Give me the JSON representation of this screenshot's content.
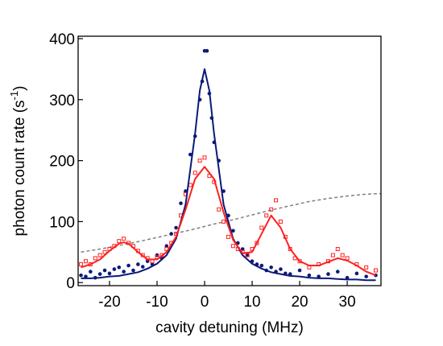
{
  "chart_data": {
    "type": "scatter",
    "xlabel": "cavity detuning (MHz)",
    "ylabel": "photon count rate (s",
    "ylabel_sup": "-1",
    "ylabel_end": ")",
    "xlim": [
      -26.6,
      37.1
    ],
    "ylim": [
      -5,
      404
    ],
    "xticks": [
      -20,
      -10,
      0,
      10,
      20,
      30
    ],
    "yticks": [
      0,
      100,
      200,
      300,
      400
    ],
    "series": [
      {
        "marker": "line",
        "color": "#808080",
        "dash": true,
        "x": [
          -26,
          -22,
          -18,
          -14,
          -10,
          -6,
          -2,
          2,
          6,
          10,
          14,
          18,
          22,
          26,
          30,
          34,
          37
        ],
        "values": [
          50,
          55,
          61,
          67,
          74,
          81,
          88,
          96,
          103,
          111,
          119,
          126,
          133,
          138,
          142,
          145,
          146
        ]
      },
      {
        "marker": "circle",
        "color": "#0a1a78",
        "x": [
          -26,
          -25,
          -24,
          -23,
          -22,
          -21,
          -20,
          -19,
          -18,
          -17,
          -16,
          -15,
          -14,
          -13,
          -12,
          -11,
          -10,
          -9,
          -8,
          -7,
          -6,
          -5,
          -4,
          -3,
          -2,
          -1,
          -0.5,
          0,
          0.5,
          1,
          1.5,
          2,
          3,
          4,
          5,
          6,
          7,
          8,
          9,
          10,
          11,
          12,
          13,
          14,
          15,
          16,
          17,
          18,
          20,
          22,
          24,
          26,
          28,
          30,
          32,
          34,
          36
        ],
        "values": [
          12,
          10,
          18,
          8,
          14,
          20,
          15,
          22,
          25,
          18,
          28,
          20,
          30,
          26,
          35,
          30,
          45,
          40,
          60,
          80,
          90,
          130,
          150,
          210,
          240,
          300,
          330,
          380,
          380,
          310,
          270,
          230,
          200,
          150,
          110,
          85,
          65,
          55,
          45,
          35,
          30,
          28,
          20,
          25,
          18,
          22,
          15,
          14,
          20,
          12,
          10,
          14,
          18,
          8,
          15,
          10,
          12
        ]
      },
      {
        "marker": "square",
        "color": "#ff2020",
        "x": [
          -26,
          -25,
          -24,
          -23,
          -22,
          -21,
          -20,
          -19,
          -18,
          -17,
          -16,
          -15,
          -14,
          -13,
          -12,
          -11,
          -10,
          -9,
          -8,
          -7,
          -6,
          -5,
          -4,
          -3,
          -2,
          -1,
          0,
          1,
          2,
          3,
          4,
          5,
          6,
          7,
          8,
          9,
          10,
          11,
          12,
          13,
          14,
          15,
          16,
          17,
          18,
          19,
          20,
          22,
          24,
          26,
          27,
          28,
          29,
          30,
          32,
          34,
          36
        ],
        "values": [
          30,
          35,
          30,
          40,
          45,
          50,
          55,
          60,
          68,
          72,
          65,
          60,
          52,
          45,
          40,
          35,
          42,
          45,
          55,
          65,
          80,
          110,
          145,
          160,
          180,
          200,
          205,
          175,
          165,
          120,
          100,
          75,
          60,
          55,
          50,
          45,
          55,
          65,
          90,
          110,
          120,
          135,
          100,
          75,
          55,
          40,
          35,
          25,
          30,
          35,
          45,
          55,
          45,
          40,
          30,
          25,
          20
        ]
      },
      {
        "marker": "line",
        "color": "#0a1a78",
        "x": [
          -26,
          -24,
          -22,
          -20,
          -18,
          -16,
          -14,
          -12,
          -10,
          -8,
          -6,
          -4,
          -2,
          -1,
          0,
          1,
          2,
          4,
          6,
          8,
          10,
          12,
          14,
          16,
          18,
          20,
          22,
          24,
          26,
          28,
          30,
          32,
          34,
          36
        ],
        "values": [
          7,
          7,
          8,
          10,
          11,
          14,
          17,
          23,
          31,
          45,
          72,
          128,
          244,
          315,
          350,
          315,
          244,
          128,
          72,
          45,
          31,
          23,
          17,
          14,
          11,
          10,
          8,
          7,
          7,
          6,
          5,
          5,
          4,
          4
        ]
      },
      {
        "marker": "line",
        "color": "#ff2020",
        "x": [
          -26,
          -24,
          -22,
          -20,
          -18,
          -17,
          -16,
          -14,
          -12,
          -10,
          -8,
          -6,
          -4,
          -2,
          0,
          2,
          4,
          6,
          8,
          10,
          12,
          14,
          16,
          18,
          20,
          22,
          24,
          26,
          28,
          30,
          32,
          34,
          36
        ],
        "values": [
          25,
          30,
          38,
          52,
          64,
          66,
          64,
          50,
          38,
          38,
          50,
          75,
          120,
          170,
          190,
          170,
          115,
          70,
          48,
          50,
          80,
          110,
          90,
          55,
          35,
          28,
          28,
          34,
          40,
          36,
          28,
          18,
          12
        ]
      }
    ]
  }
}
